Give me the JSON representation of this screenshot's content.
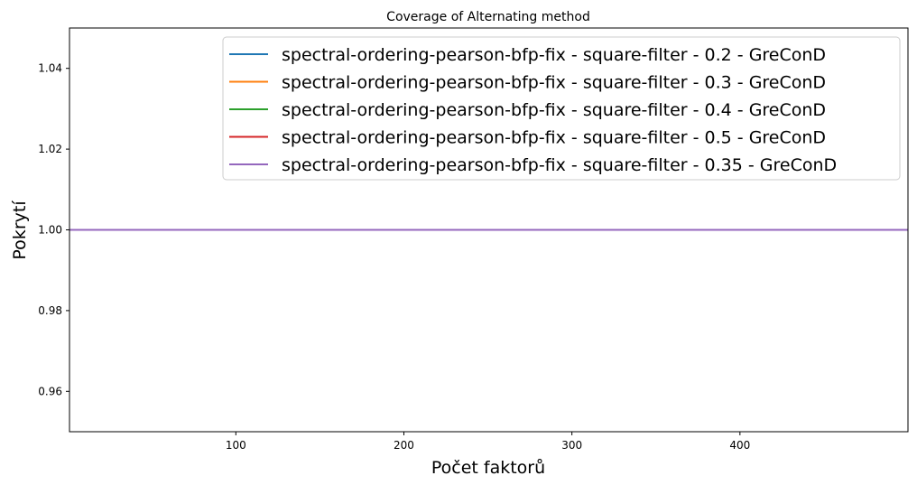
{
  "chart_data": {
    "type": "line",
    "title": "Coverage of Alternating method",
    "xlabel": "Počet faktorů",
    "ylabel": "Pokrytí",
    "xlim": [
      1,
      500
    ],
    "ylim": [
      0.95,
      1.05
    ],
    "xticks": [
      100,
      200,
      300,
      400
    ],
    "xtick_labels": [
      "100",
      "200",
      "300",
      "400"
    ],
    "yticks": [
      0.96,
      0.98,
      1.0,
      1.02,
      1.04
    ],
    "ytick_labels": [
      "0.96",
      "0.98",
      "1.00",
      "1.02",
      "1.04"
    ],
    "grid": false,
    "legend_position": "top-right",
    "series": [
      {
        "name": "spectral-ordering-pearson-bfp-fix - square-filter - 0.2 - GreConD",
        "color": "#1f77b4",
        "x": [
          1,
          500
        ],
        "y": [
          1.0,
          1.0
        ]
      },
      {
        "name": "spectral-ordering-pearson-bfp-fix - square-filter - 0.3 - GreConD",
        "color": "#ff7f0e",
        "x": [
          1,
          500
        ],
        "y": [
          1.0,
          1.0
        ]
      },
      {
        "name": "spectral-ordering-pearson-bfp-fix - square-filter - 0.4 - GreConD",
        "color": "#2ca02c",
        "x": [
          1,
          500
        ],
        "y": [
          1.0,
          1.0
        ]
      },
      {
        "name": "spectral-ordering-pearson-bfp-fix - square-filter - 0.5 - GreConD",
        "color": "#d62728",
        "x": [
          1,
          500
        ],
        "y": [
          1.0,
          1.0
        ]
      },
      {
        "name": "spectral-ordering-pearson-bfp-fix - square-filter - 0.35 - GreConD",
        "color": "#9467bd",
        "x": [
          1,
          500
        ],
        "y": [
          1.0,
          1.0
        ]
      }
    ]
  }
}
